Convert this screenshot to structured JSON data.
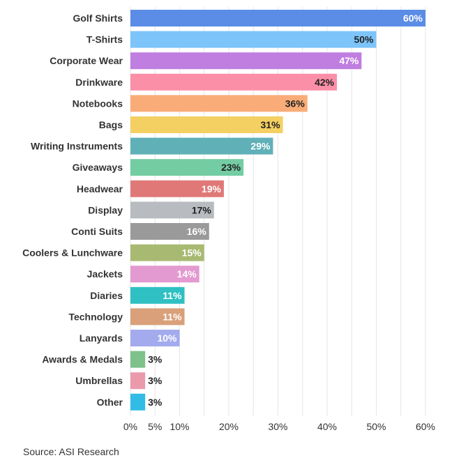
{
  "chart_data": {
    "type": "bar",
    "orientation": "horizontal",
    "categories": [
      "Golf Shirts",
      "T-Shirts",
      "Corporate Wear",
      "Drinkware",
      "Notebooks",
      "Bags",
      "Writing Instruments",
      "Giveaways",
      "Headwear",
      "Display",
      "Conti Suits",
      "Coolers & Lunchware",
      "Jackets",
      "Diaries",
      "Technology",
      "Lanyards",
      "Awards & Medals",
      "Umbrellas",
      "Other"
    ],
    "values": [
      60,
      50,
      47,
      42,
      36,
      31,
      29,
      23,
      19,
      17,
      16,
      15,
      14,
      11,
      11,
      10,
      3,
      3,
      3
    ],
    "value_labels": [
      "60%",
      "50%",
      "47%",
      "42%",
      "36%",
      "31%",
      "29%",
      "23%",
      "19%",
      "17%",
      "16%",
      "15%",
      "14%",
      "11%",
      "11%",
      "10%",
      "3%",
      "3%",
      "3%"
    ],
    "colors": [
      "#5b8ce6",
      "#7cc4fa",
      "#c07ee0",
      "#fb8fa7",
      "#f9ac78",
      "#f4cf62",
      "#60b0b8",
      "#74cca3",
      "#e07878",
      "#b8bcc0",
      "#9a9a9a",
      "#a8ba72",
      "#e39ad0",
      "#2ec0c2",
      "#d9a07a",
      "#a3abee",
      "#7cc28a",
      "#eb9aac",
      "#31bce6"
    ],
    "label_colors": [
      "#ffffff",
      "#222222",
      "#ffffff",
      "#222222",
      "#222222",
      "#222222",
      "#ffffff",
      "#222222",
      "#ffffff",
      "#222222",
      "#ffffff",
      "#ffffff",
      "#ffffff",
      "#ffffff",
      "#ffffff",
      "#ffffff",
      "#222222",
      "#222222",
      "#222222"
    ],
    "xlim": [
      0,
      60
    ],
    "xticks": [
      0,
      5,
      10,
      20,
      30,
      40,
      50,
      60
    ],
    "xtick_labels": [
      "0%",
      "5%",
      "10%",
      "20%",
      "30%",
      "40%",
      "50%",
      "60%"
    ],
    "grid": true
  },
  "source": "Source: ASI Research"
}
